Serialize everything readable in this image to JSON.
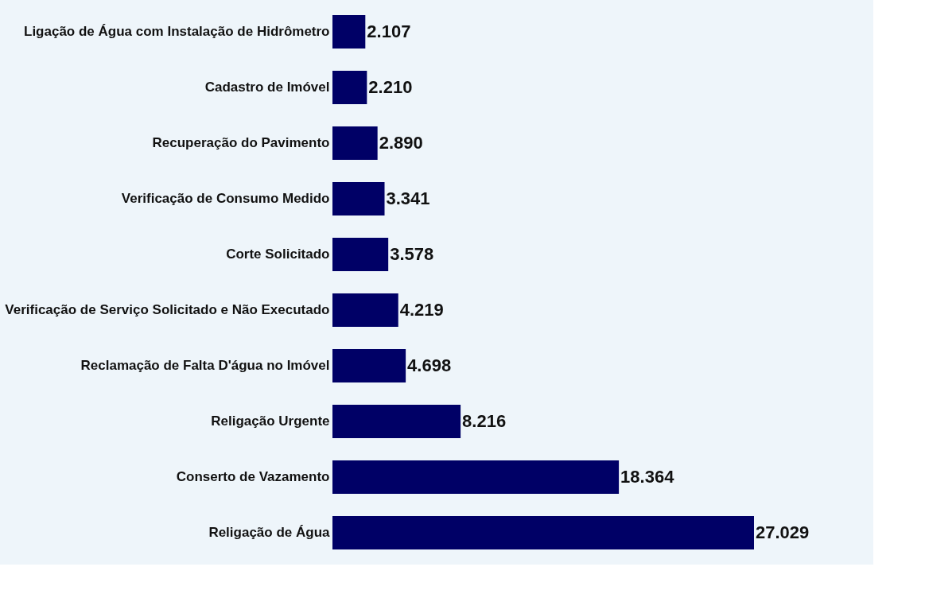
{
  "chart_data": {
    "type": "bar",
    "orientation": "horizontal",
    "categories": [
      "Ligação de Água com Instalação de Hidrômetro",
      "Cadastro de Imóvel",
      "Recuperação do Pavimento",
      "Verificação de Consumo Medido",
      "Corte Solicitado",
      "Verificação de Serviço Solicitado e Não Executado",
      "Reclamação de Falta D'água no Imóvel",
      "Religação Urgente",
      "Conserto de Vazamento",
      "Religação de Água"
    ],
    "values": [
      2107,
      2210,
      2890,
      3341,
      3578,
      4219,
      4698,
      8216,
      18364,
      27029
    ],
    "value_labels": [
      "2.107",
      "2.210",
      "2.890",
      "3.341",
      "3.578",
      "4.219",
      "4.698",
      "8.216",
      "18.364",
      "27.029"
    ],
    "color": "#000066"
  }
}
